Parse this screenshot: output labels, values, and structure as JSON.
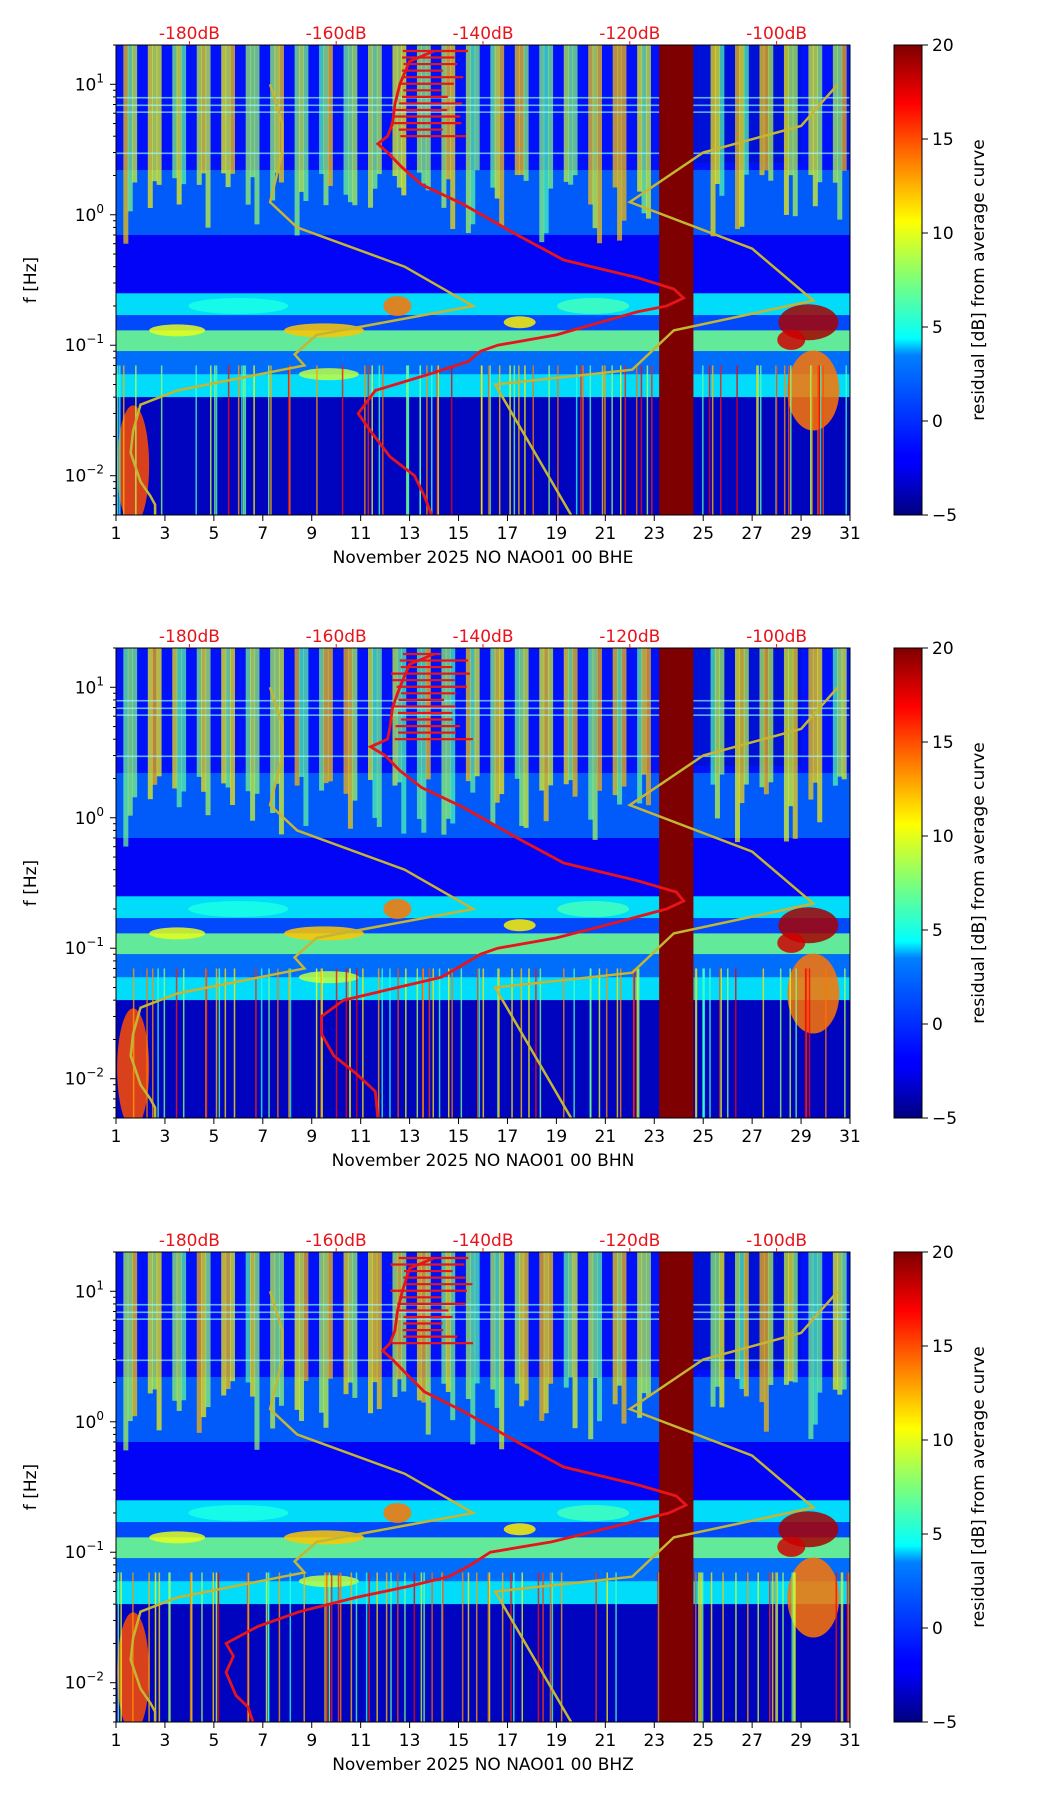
{
  "colors": {
    "median_curve": "#e8141b",
    "noise_model": "#c4b634",
    "top_axis_text": "#e8141b",
    "gap_fill": "#7f0000"
  },
  "chart_data": [
    {
      "type": "heatmap",
      "channel": "BHE",
      "xlabel": "November 2025 NO NAO01 00 BHE",
      "ylabel": "f [Hz]",
      "x_range": [
        1,
        31
      ],
      "x_ticks": [
        1,
        3,
        5,
        7,
        9,
        11,
        13,
        15,
        17,
        19,
        21,
        23,
        25,
        27,
        29,
        31
      ],
      "y_scale": "log",
      "y_range": [
        0.005,
        20
      ],
      "y_ticks": [
        {
          "value": 0.01,
          "base": "10",
          "exp": "−2"
        },
        {
          "value": 0.1,
          "base": "10",
          "exp": "−1"
        },
        {
          "value": 1,
          "base": "10",
          "exp": "0"
        },
        {
          "value": 10,
          "base": "10",
          "exp": "1"
        }
      ],
      "top_axis": [
        {
          "label": "-180dB",
          "day": 4.0
        },
        {
          "label": "-160dB",
          "day": 10.0
        },
        {
          "label": "-140dB",
          "day": 16.0
        },
        {
          "label": "-120dB",
          "day": 22.0
        },
        {
          "label": "-100dB",
          "day": 28.0
        }
      ],
      "gap": {
        "from_day": 23.2,
        "to_day": 24.6
      },
      "median_curve": [
        [
          13.9,
          0.005
        ],
        [
          13.6,
          0.007
        ],
        [
          13.2,
          0.01
        ],
        [
          12.2,
          0.014
        ],
        [
          11.4,
          0.022
        ],
        [
          10.9,
          0.03
        ],
        [
          11.6,
          0.045
        ],
        [
          13.8,
          0.06
        ],
        [
          15.4,
          0.075
        ],
        [
          15.9,
          0.09
        ],
        [
          16.6,
          0.1
        ],
        [
          19.0,
          0.12
        ],
        [
          20.8,
          0.15
        ],
        [
          22.3,
          0.18
        ],
        [
          23.5,
          0.2
        ],
        [
          24.2,
          0.23
        ],
        [
          23.8,
          0.27
        ],
        [
          22.3,
          0.33
        ],
        [
          19.3,
          0.45
        ],
        [
          17.4,
          0.7
        ],
        [
          15.2,
          1.2
        ],
        [
          13.5,
          1.7
        ],
        [
          12.7,
          2.3
        ],
        [
          12.1,
          3.0
        ],
        [
          11.7,
          3.5
        ],
        [
          12.1,
          4.0
        ],
        [
          12.3,
          5.0
        ],
        [
          12.4,
          7.0
        ],
        [
          12.6,
          10.0
        ],
        [
          13.0,
          15.0
        ],
        [
          14.0,
          18.0
        ]
      ],
      "noise_model": [
        [
          19.6,
          0.005
        ],
        [
          16.5,
          0.05
        ],
        [
          22.1,
          0.065
        ],
        [
          23.8,
          0.13
        ],
        [
          29.5,
          0.22
        ],
        [
          27.0,
          0.55
        ],
        [
          22.0,
          1.25
        ],
        [
          25.0,
          3.0
        ],
        [
          29.0,
          4.8
        ],
        [
          30.5,
          10.0
        ]
      ],
      "noise_model_low": [
        [
          2.6,
          0.005
        ],
        [
          2.6,
          0.006
        ],
        [
          2.4,
          0.007
        ],
        [
          2.0,
          0.009
        ],
        [
          1.6,
          0.015
        ],
        [
          1.7,
          0.022
        ],
        [
          2.0,
          0.035
        ],
        [
          3.5,
          0.045
        ],
        [
          8.7,
          0.07
        ],
        [
          8.3,
          0.085
        ],
        [
          9.2,
          0.12
        ],
        [
          15.6,
          0.2
        ],
        [
          12.8,
          0.4
        ],
        [
          8.4,
          0.8
        ],
        [
          7.3,
          1.25
        ],
        [
          7.8,
          3.0
        ],
        [
          7.8,
          5.0
        ],
        [
          7.3,
          10.0
        ]
      ],
      "colorbar": {
        "label": "residual [dB] from average curve",
        "min": -5,
        "max": 20,
        "ticks": [
          -5,
          0,
          5,
          10,
          15,
          20
        ]
      }
    },
    {
      "type": "heatmap",
      "channel": "BHN",
      "xlabel": "November 2025 NO NAO01 00 BHN",
      "ylabel": "f [Hz]",
      "x_range": [
        1,
        31
      ],
      "x_ticks": [
        1,
        3,
        5,
        7,
        9,
        11,
        13,
        15,
        17,
        19,
        21,
        23,
        25,
        27,
        29,
        31
      ],
      "y_scale": "log",
      "y_range": [
        0.005,
        20
      ],
      "y_ticks": [
        {
          "value": 0.01,
          "base": "10",
          "exp": "−2"
        },
        {
          "value": 0.1,
          "base": "10",
          "exp": "−1"
        },
        {
          "value": 1,
          "base": "10",
          "exp": "0"
        },
        {
          "value": 10,
          "base": "10",
          "exp": "1"
        }
      ],
      "top_axis": [
        {
          "label": "-180dB",
          "day": 4.0
        },
        {
          "label": "-160dB",
          "day": 10.0
        },
        {
          "label": "-140dB",
          "day": 16.0
        },
        {
          "label": "-120dB",
          "day": 22.0
        },
        {
          "label": "-100dB",
          "day": 28.0
        }
      ],
      "gap": {
        "from_day": 23.2,
        "to_day": 24.6
      },
      "median_curve": [
        [
          11.7,
          0.005
        ],
        [
          11.6,
          0.008
        ],
        [
          10.8,
          0.011
        ],
        [
          9.9,
          0.015
        ],
        [
          9.4,
          0.022
        ],
        [
          9.4,
          0.03
        ],
        [
          10.3,
          0.04
        ],
        [
          12.5,
          0.05
        ],
        [
          14.3,
          0.06
        ],
        [
          15.2,
          0.075
        ],
        [
          15.9,
          0.09
        ],
        [
          16.6,
          0.1
        ],
        [
          19.0,
          0.12
        ],
        [
          21.0,
          0.15
        ],
        [
          22.6,
          0.18
        ],
        [
          23.5,
          0.2
        ],
        [
          24.2,
          0.23
        ],
        [
          23.9,
          0.27
        ],
        [
          22.3,
          0.33
        ],
        [
          19.3,
          0.45
        ],
        [
          17.4,
          0.7
        ],
        [
          15.2,
          1.2
        ],
        [
          13.5,
          1.7
        ],
        [
          12.6,
          2.3
        ],
        [
          12.0,
          3.0
        ],
        [
          11.4,
          3.5
        ],
        [
          12.1,
          4.0
        ],
        [
          12.2,
          5.0
        ],
        [
          12.3,
          7.0
        ],
        [
          12.6,
          10.0
        ],
        [
          13.0,
          15.0
        ],
        [
          14.0,
          18.0
        ]
      ],
      "noise_model": [
        [
          19.6,
          0.005
        ],
        [
          16.5,
          0.05
        ],
        [
          22.1,
          0.065
        ],
        [
          23.8,
          0.13
        ],
        [
          29.5,
          0.22
        ],
        [
          27.0,
          0.55
        ],
        [
          22.0,
          1.25
        ],
        [
          25.0,
          3.0
        ],
        [
          29.0,
          4.8
        ],
        [
          30.5,
          10.0
        ]
      ],
      "noise_model_low": [
        [
          2.6,
          0.005
        ],
        [
          2.6,
          0.006
        ],
        [
          2.4,
          0.007
        ],
        [
          2.0,
          0.009
        ],
        [
          1.6,
          0.015
        ],
        [
          1.7,
          0.022
        ],
        [
          2.0,
          0.035
        ],
        [
          3.5,
          0.045
        ],
        [
          8.7,
          0.07
        ],
        [
          8.3,
          0.085
        ],
        [
          9.2,
          0.12
        ],
        [
          15.6,
          0.2
        ],
        [
          12.8,
          0.4
        ],
        [
          8.4,
          0.8
        ],
        [
          7.3,
          1.25
        ],
        [
          7.8,
          3.0
        ],
        [
          7.8,
          5.0
        ],
        [
          7.3,
          10.0
        ]
      ],
      "colorbar": {
        "label": "residual [dB] from average curve",
        "min": -5,
        "max": 20,
        "ticks": [
          -5,
          0,
          5,
          10,
          15,
          20
        ]
      }
    },
    {
      "type": "heatmap",
      "channel": "BHZ",
      "xlabel": "November 2025 NO NAO01 00 BHZ",
      "ylabel": "f [Hz]",
      "x_range": [
        1,
        31
      ],
      "x_ticks": [
        1,
        3,
        5,
        7,
        9,
        11,
        13,
        15,
        17,
        19,
        21,
        23,
        25,
        27,
        29,
        31
      ],
      "y_scale": "log",
      "y_range": [
        0.005,
        20
      ],
      "y_ticks": [
        {
          "value": 0.01,
          "base": "10",
          "exp": "−2"
        },
        {
          "value": 0.1,
          "base": "10",
          "exp": "−1"
        },
        {
          "value": 1,
          "base": "10",
          "exp": "0"
        },
        {
          "value": 10,
          "base": "10",
          "exp": "1"
        }
      ],
      "top_axis": [
        {
          "label": "-180dB",
          "day": 4.0
        },
        {
          "label": "-160dB",
          "day": 10.0
        },
        {
          "label": "-140dB",
          "day": 16.0
        },
        {
          "label": "-120dB",
          "day": 22.0
        },
        {
          "label": "-100dB",
          "day": 28.0
        }
      ],
      "gap": {
        "from_day": 23.2,
        "to_day": 24.6
      },
      "median_curve": [
        [
          6.6,
          0.005
        ],
        [
          6.4,
          0.0065
        ],
        [
          5.9,
          0.008
        ],
        [
          5.5,
          0.012
        ],
        [
          5.8,
          0.016
        ],
        [
          5.5,
          0.02
        ],
        [
          6.8,
          0.027
        ],
        [
          8.5,
          0.035
        ],
        [
          10.8,
          0.045
        ],
        [
          13.0,
          0.055
        ],
        [
          14.6,
          0.065
        ],
        [
          15.5,
          0.08
        ],
        [
          16.3,
          0.1
        ],
        [
          18.8,
          0.12
        ],
        [
          20.9,
          0.15
        ],
        [
          22.6,
          0.18
        ],
        [
          23.6,
          0.2
        ],
        [
          24.3,
          0.23
        ],
        [
          23.9,
          0.27
        ],
        [
          22.3,
          0.33
        ],
        [
          19.3,
          0.45
        ],
        [
          17.4,
          0.7
        ],
        [
          15.2,
          1.2
        ],
        [
          13.6,
          1.7
        ],
        [
          12.9,
          2.3
        ],
        [
          12.3,
          3.0
        ],
        [
          11.9,
          3.5
        ],
        [
          12.2,
          4.0
        ],
        [
          12.4,
          5.0
        ],
        [
          12.5,
          7.0
        ],
        [
          12.7,
          10.0
        ],
        [
          13.0,
          15.0
        ],
        [
          14.0,
          18.0
        ]
      ],
      "noise_model": [
        [
          19.6,
          0.005
        ],
        [
          16.5,
          0.05
        ],
        [
          22.1,
          0.065
        ],
        [
          23.8,
          0.13
        ],
        [
          29.5,
          0.22
        ],
        [
          27.0,
          0.55
        ],
        [
          22.0,
          1.25
        ],
        [
          25.0,
          3.0
        ],
        [
          29.0,
          4.8
        ],
        [
          30.5,
          10.0
        ]
      ],
      "noise_model_low": [
        [
          2.6,
          0.005
        ],
        [
          2.6,
          0.006
        ],
        [
          2.4,
          0.007
        ],
        [
          2.0,
          0.009
        ],
        [
          1.6,
          0.015
        ],
        [
          1.7,
          0.022
        ],
        [
          2.0,
          0.035
        ],
        [
          3.5,
          0.045
        ],
        [
          8.7,
          0.07
        ],
        [
          8.3,
          0.085
        ],
        [
          9.2,
          0.12
        ],
        [
          15.6,
          0.2
        ],
        [
          12.8,
          0.4
        ],
        [
          8.4,
          0.8
        ],
        [
          7.3,
          1.25
        ],
        [
          7.8,
          3.0
        ],
        [
          7.8,
          5.0
        ],
        [
          7.3,
          10.0
        ]
      ],
      "colorbar": {
        "label": "residual [dB] from average curve",
        "min": -5,
        "max": 20,
        "ticks": [
          -5,
          0,
          5,
          10,
          15,
          20
        ]
      }
    }
  ]
}
